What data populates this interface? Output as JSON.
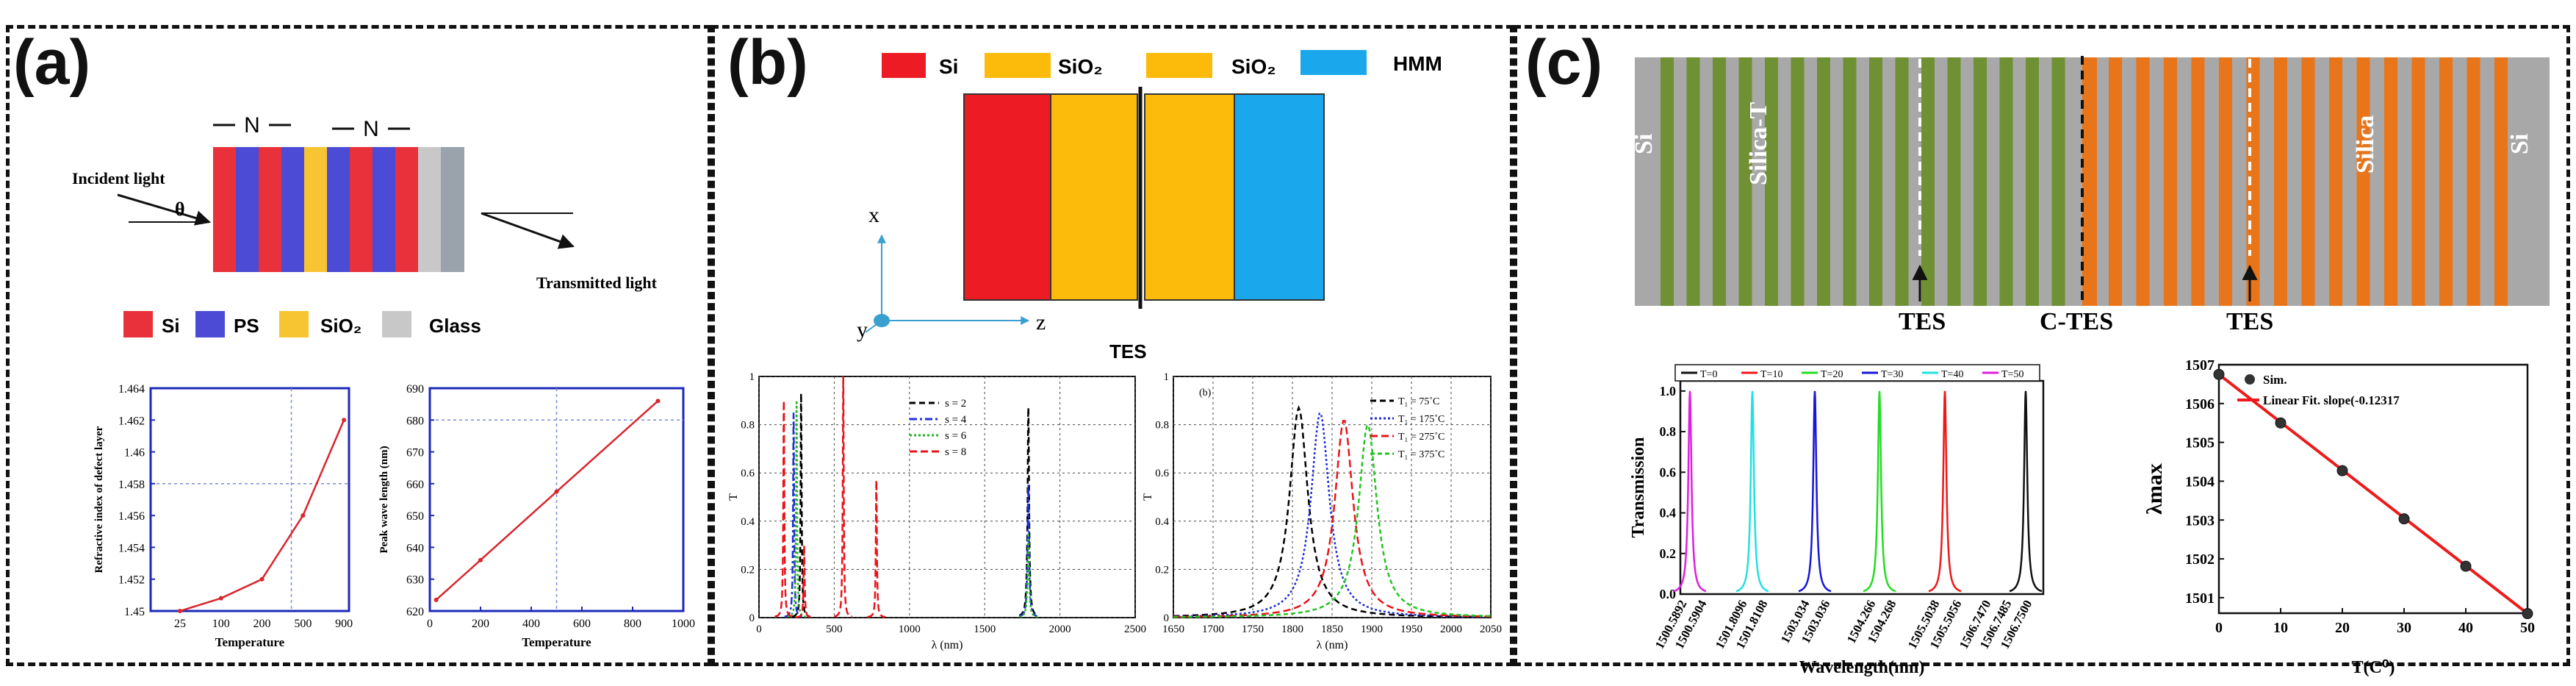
{
  "panels": {
    "a": {
      "label": "(a)"
    },
    "b": {
      "label": "(b)"
    },
    "c": {
      "label": "(c)"
    }
  },
  "panel_a": {
    "n_left": "N",
    "n_right": "N",
    "incident": "Incident light",
    "theta": "θ",
    "transmitted": "Transmitted light",
    "legend": [
      "Si",
      "PS",
      "SiO₂",
      "Glass"
    ],
    "colors": {
      "Si": "#e8313b",
      "PS": "#4b4bd6",
      "SiO2": "#f7c531",
      "Glass": "#c8c8c8",
      "glass_dark": "#9aa3ab",
      "line": "#d8262c",
      "axis": "#1c2ab8"
    }
  },
  "panel_b": {
    "legend": [
      "Si",
      "SiO₂",
      "SiO₂",
      "HMM"
    ],
    "colors": {
      "Si": "#ed1c24",
      "SiO2": "#fcbb0a",
      "HMM": "#1aa7ec"
    },
    "axis_x": "x",
    "axis_y": "y",
    "axis_z": "z",
    "tes": "TES",
    "inner_label": "(b)"
  },
  "panel_c": {
    "si_left": "Si",
    "silica_t": "Silica-T",
    "silica": "Silica",
    "si_right": "Si",
    "tes_left": "TES",
    "ctes": "C-TES",
    "tes_right": "TES",
    "colors": {
      "gray": "#a8a8a8",
      "green": "#6f9133",
      "orange": "#e8751a"
    }
  },
  "chart_data": [
    {
      "type": "line",
      "title": "",
      "xlabel": "Temperature",
      "ylabel": "Refractive index of defect layer",
      "categories": [
        "25",
        "100",
        "200",
        "500",
        "900"
      ],
      "x_ticks": [
        "25",
        "100",
        "200",
        "500",
        "900"
      ],
      "y_ticks": [
        "1.45",
        "1.452",
        "1.454",
        "1.456",
        "1.458",
        "1.46",
        "1.462",
        "1.464"
      ],
      "ylim": [
        1.45,
        1.464
      ],
      "values": [
        1.45,
        1.4508,
        1.452,
        1.456,
        1.462
      ]
    },
    {
      "type": "line",
      "title": "",
      "xlabel": "Temperature",
      "ylabel": "Peak wave length (nm)",
      "x_ticks": [
        "0",
        "200",
        "400",
        "600",
        "800",
        "1000"
      ],
      "y_ticks": [
        "620",
        "630",
        "640",
        "650",
        "660",
        "670",
        "680",
        "690"
      ],
      "xlim": [
        0,
        1000
      ],
      "ylim": [
        620,
        690
      ],
      "x": [
        25,
        200,
        500,
        900
      ],
      "values": [
        623.5,
        636,
        657.5,
        686
      ]
    },
    {
      "type": "line",
      "title": "",
      "xlabel": "λ (nm)",
      "ylabel": "T",
      "x_ticks": [
        "0",
        "500",
        "1000",
        "1500",
        "2000",
        "2500"
      ],
      "y_ticks": [
        "0",
        "0.2",
        "0.4",
        "0.6",
        "0.8",
        "1"
      ],
      "xlim": [
        0,
        2500
      ],
      "ylim": [
        0,
        1
      ],
      "legend": [
        "s = 2",
        "s = 4",
        "s = 6",
        "s = 8"
      ],
      "series": [
        {
          "name": "s = 2",
          "color": "#000000",
          "peaks": [
            [
              1790,
              0.87
            ],
            [
              280,
              0.93
            ]
          ]
        },
        {
          "name": "s = 4",
          "color": "#1f2fd6",
          "peaks": [
            [
              1790,
              0.55
            ],
            [
              230,
              0.85
            ]
          ]
        },
        {
          "name": "s = 6",
          "color": "#22b522",
          "peaks": [
            [
              1790,
              0.35
            ],
            [
              250,
              0.9
            ]
          ]
        },
        {
          "name": "s = 8",
          "color": "#e8141a",
          "peaks": [
            [
              165,
              0.9
            ],
            [
              300,
              0.3
            ],
            [
              560,
              1.0
            ],
            [
              780,
              0.57
            ]
          ]
        }
      ]
    },
    {
      "type": "line",
      "title": "",
      "xlabel": "λ (nm)",
      "ylabel": "T",
      "x_ticks": [
        "1650",
        "1700",
        "1750",
        "1800",
        "1850",
        "1900",
        "1950",
        "2000",
        "2050"
      ],
      "y_ticks": [
        "0",
        "0.2",
        "0.4",
        "0.6",
        "0.8",
        "1"
      ],
      "xlim": [
        1650,
        2050
      ],
      "ylim": [
        0,
        1
      ],
      "legend": [
        "T₁ = 75˚C",
        "T₁ = 175˚C",
        "T₁ = 275˚C",
        "T₁ = 375˚C"
      ],
      "series": [
        {
          "name": "T₁ = 75˚C",
          "color": "#000000",
          "peak": [
            1808,
            0.87
          ],
          "width": 14
        },
        {
          "name": "T₁ = 175˚C",
          "color": "#1f2fd6",
          "peak": [
            1835,
            0.85
          ],
          "width": 14
        },
        {
          "name": "T₁ = 275˚C",
          "color": "#e8141a",
          "peak": [
            1865,
            0.82
          ],
          "width": 14
        },
        {
          "name": "T₁ = 375˚C",
          "color": "#22c422",
          "peak": [
            1895,
            0.8
          ],
          "width": 14
        }
      ]
    },
    {
      "type": "line",
      "title": "",
      "xlabel": "Wavelength(nm)",
      "ylabel": "Transmission",
      "y_ticks": [
        "0.0",
        "0.2",
        "0.4",
        "0.6",
        "0.8",
        "1.0"
      ],
      "ylim": [
        0,
        1
      ],
      "x_ticks": [
        "1500.5892",
        "1500.5904",
        "1501.8096",
        "1501.8108",
        "1503.034",
        "1503.036",
        "1504.266",
        "1504.268",
        "1505.5038",
        "1505.5056",
        "1506.7470",
        "1506.7485",
        "1506.7500"
      ],
      "legend": [
        "T=0",
        "T=10",
        "T=20",
        "T=30",
        "T=40",
        "T=50"
      ],
      "series": [
        {
          "name": "T=50",
          "color": "#e01ee0",
          "peak": 1500.5898
        },
        {
          "name": "T=40",
          "color": "#22e0e0",
          "peak": 1501.8102
        },
        {
          "name": "T=30",
          "color": "#1616d8",
          "peak": 1503.035
        },
        {
          "name": "T=20",
          "color": "#22dd22",
          "peak": 1504.267
        },
        {
          "name": "T=10",
          "color": "#ee1818",
          "peak": 1505.5047
        },
        {
          "name": "T=0",
          "color": "#111111",
          "peak": 1506.7485
        }
      ]
    },
    {
      "type": "scatter",
      "title": "",
      "xlabel": "T(C⁰)",
      "ylabel": "λmax",
      "x_ticks": [
        "0",
        "10",
        "20",
        "30",
        "40",
        "50"
      ],
      "y_ticks": [
        "1501",
        "1502",
        "1503",
        "1504",
        "1505",
        "1506",
        "1507"
      ],
      "xlim": [
        0,
        50
      ],
      "ylim": [
        1500.6,
        1507
      ],
      "legend": [
        "Sim.",
        "Linear Fit. slope(-0.12317"
      ],
      "x": [
        0,
        10,
        20,
        30,
        40,
        50
      ],
      "values": [
        1506.75,
        1505.5,
        1504.27,
        1503.03,
        1501.81,
        1500.59
      ],
      "fit_slope": -0.12317
    }
  ]
}
